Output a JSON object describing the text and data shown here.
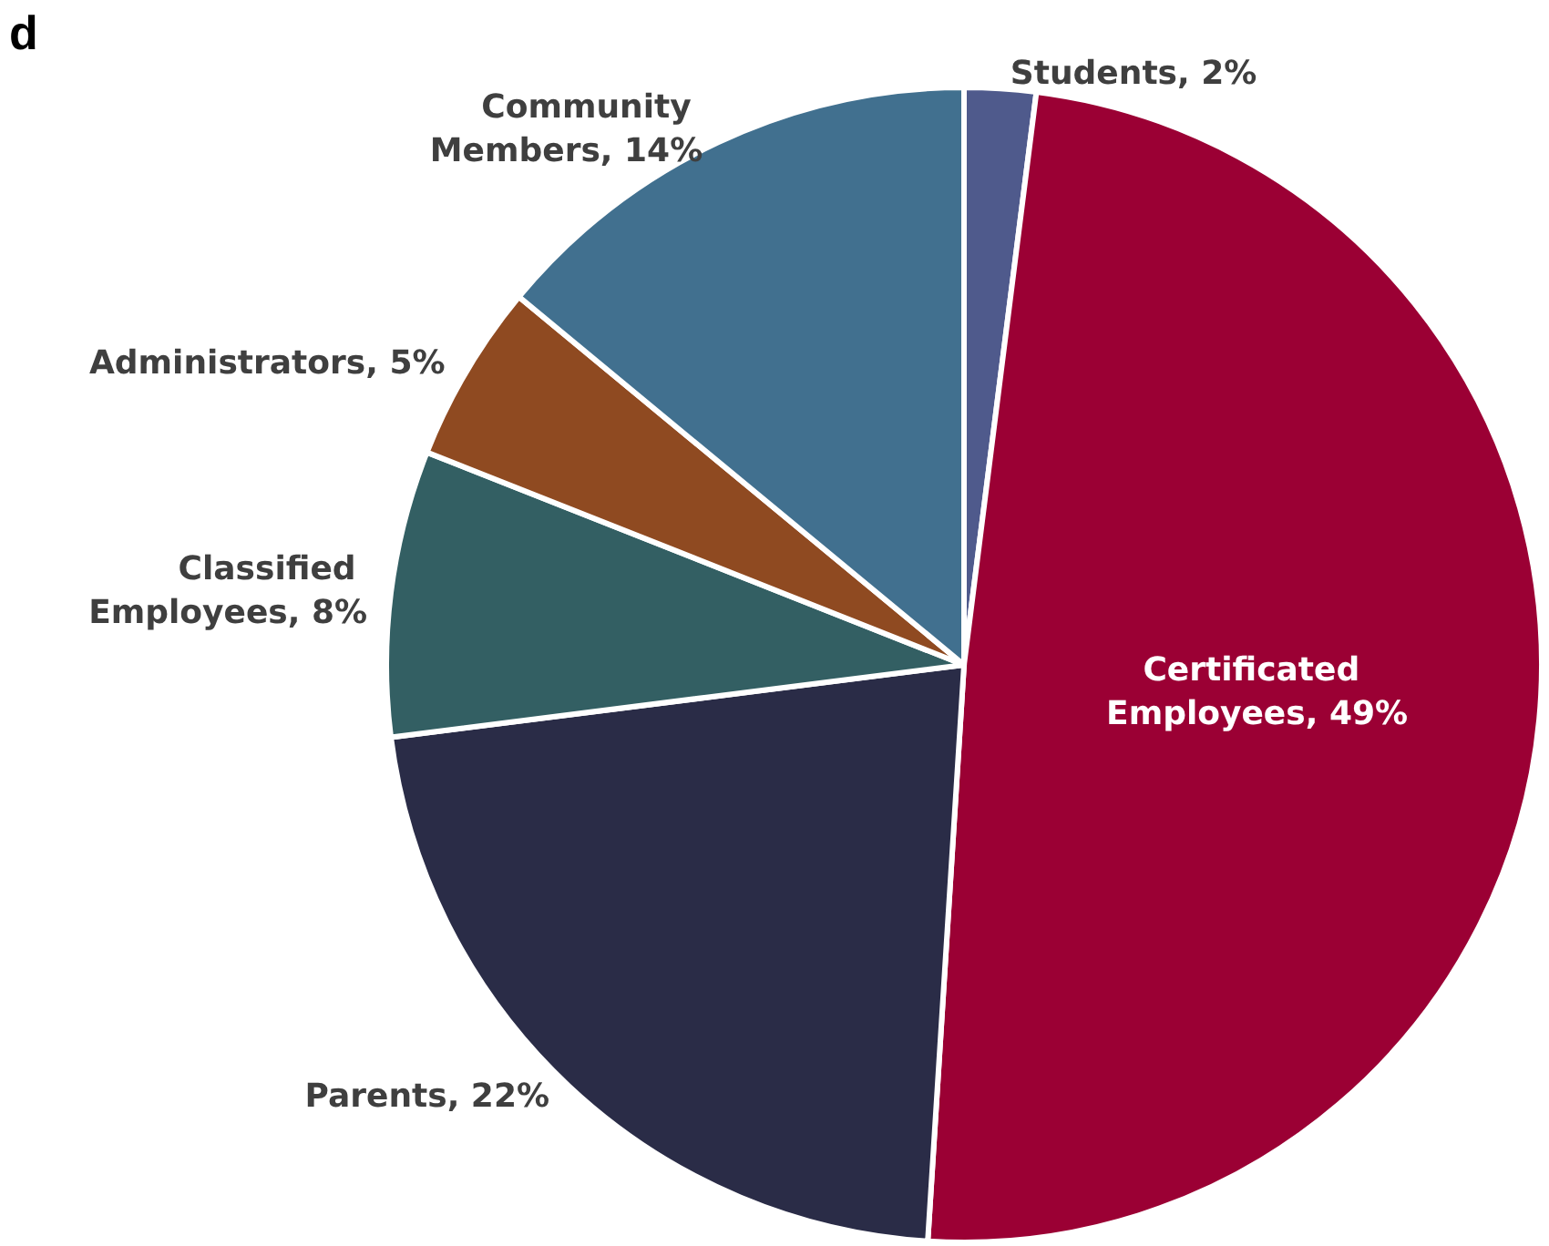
{
  "chart_data": {
    "type": "pie",
    "title": "d",
    "categories": [
      "Students",
      "Certificated Employees",
      "Parents",
      "Classified Employees",
      "Administrators",
      "Community Members"
    ],
    "values": [
      2,
      49,
      22,
      8,
      5,
      14
    ],
    "value_labels": [
      "2%",
      "49%",
      "22%",
      "8%",
      "5%",
      "14%"
    ],
    "colors": [
      "#4f5a8c",
      "#9b0034",
      "#2a2c47",
      "#335f63",
      "#8f4a21",
      "#41708f"
    ],
    "legend": false
  }
}
